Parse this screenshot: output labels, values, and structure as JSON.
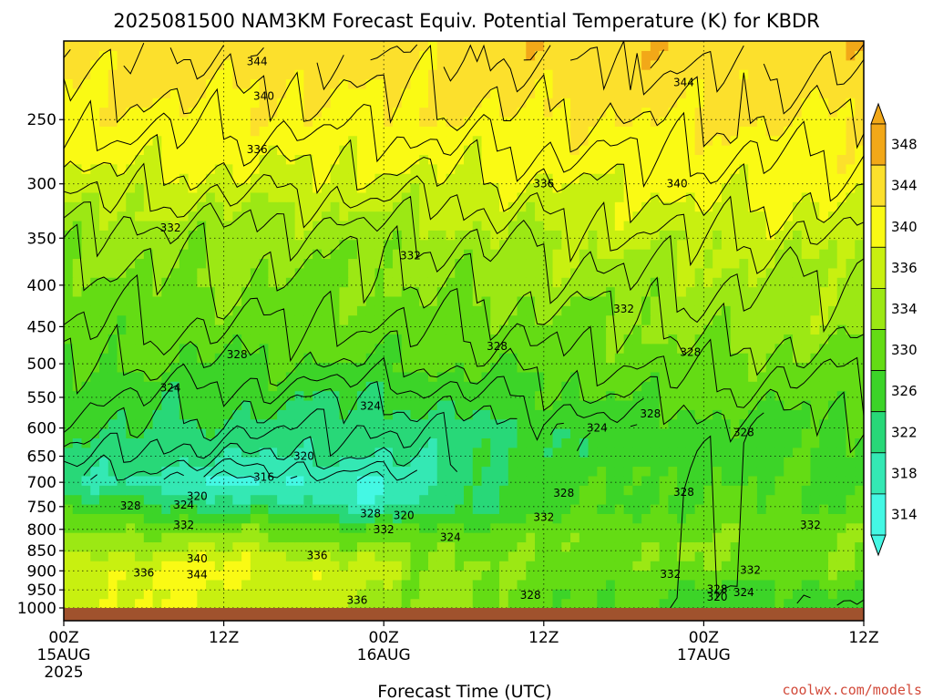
{
  "chart_data": {
    "type": "heatmap",
    "title": "2025081500 NAM3KM Forecast Equiv. Potential Temperature (K) for KBDR",
    "xlabel": "Forecast Time (UTC)",
    "ylabel": "",
    "x_range_hours": [
      0,
      60
    ],
    "y_range_hpa": [
      1000,
      200
    ],
    "y_ticks": [
      250,
      300,
      350,
      400,
      450,
      500,
      550,
      600,
      650,
      700,
      750,
      800,
      850,
      900,
      950,
      1000
    ],
    "x_ticks": [
      {
        "hour": 0,
        "line1": "00Z",
        "line2": "15AUG",
        "line3": "2025"
      },
      {
        "hour": 12,
        "line1": "12Z",
        "line2": "",
        "line3": ""
      },
      {
        "hour": 24,
        "line1": "00Z",
        "line2": "16AUG",
        "line3": ""
      },
      {
        "hour": 36,
        "line1": "12Z",
        "line2": "",
        "line3": ""
      },
      {
        "hour": 48,
        "line1": "00Z",
        "line2": "17AUG",
        "line3": ""
      },
      {
        "hour": 60,
        "line1": "12Z",
        "line2": "",
        "line3": ""
      }
    ],
    "colorbar": {
      "levels": [
        348,
        344,
        340,
        336,
        334,
        330,
        326,
        322,
        318,
        314
      ],
      "colors": [
        "#f2a818",
        "#fce02c",
        "#fafa14",
        "#c8f010",
        "#9ce814",
        "#64dc14",
        "#3cd428",
        "#28d878",
        "#34e8b4",
        "#44f8e4"
      ]
    },
    "profile": {
      "pressure_hpa": [
        1000,
        950,
        900,
        850,
        800,
        750,
        700,
        650,
        600,
        550,
        500,
        450,
        400,
        350,
        300,
        250,
        200
      ],
      "theta_e_k_at_00Z_15AUG": [
        338,
        337,
        337,
        334,
        331,
        327,
        320,
        323,
        325,
        326,
        328,
        330,
        331,
        333,
        337,
        341,
        344
      ],
      "theta_e_k_at_12Z_15AUG": [
        338,
        338,
        340,
        336,
        332,
        323,
        316,
        320,
        323,
        325,
        328,
        330,
        332,
        333,
        337,
        341,
        344
      ],
      "theta_e_k_at_00Z_16AUG": [
        334,
        334,
        335,
        333,
        328,
        318,
        316,
        320,
        322,
        324,
        328,
        330,
        332,
        333,
        337,
        341,
        344
      ],
      "theta_e_k_at_12Z_16AUG": [
        330,
        329,
        331,
        331,
        330,
        327,
        327,
        325,
        324,
        327,
        329,
        331,
        333,
        335,
        338,
        342,
        345
      ],
      "theta_e_k_at_00Z_17AUG": [
        326,
        327,
        331,
        332,
        331,
        328,
        328,
        327,
        327,
        329,
        331,
        333,
        334,
        336,
        339,
        342,
        345
      ],
      "theta_e_k_at_12Z_17AUG": [
        326,
        327,
        331,
        331,
        331,
        329,
        328,
        327,
        327,
        329,
        331,
        333,
        334,
        336,
        339,
        342,
        345
      ]
    },
    "contour_labels": [
      {
        "hour": 14.5,
        "hpa": 212,
        "text": "344"
      },
      {
        "hour": 46.5,
        "hpa": 225,
        "text": "344"
      },
      {
        "hour": 15.0,
        "hpa": 234,
        "text": "340"
      },
      {
        "hour": 46.0,
        "hpa": 300,
        "text": "340"
      },
      {
        "hour": 14.5,
        "hpa": 272,
        "text": "336"
      },
      {
        "hour": 36.0,
        "hpa": 300,
        "text": "336"
      },
      {
        "hour": 8.0,
        "hpa": 340,
        "text": "332"
      },
      {
        "hour": 26.0,
        "hpa": 368,
        "text": "332"
      },
      {
        "hour": 42.0,
        "hpa": 428,
        "text": "332"
      },
      {
        "hour": 13.0,
        "hpa": 487,
        "text": "328"
      },
      {
        "hour": 32.5,
        "hpa": 476,
        "text": "328"
      },
      {
        "hour": 47.0,
        "hpa": 484,
        "text": "328"
      },
      {
        "hour": 44.0,
        "hpa": 576,
        "text": "328"
      },
      {
        "hour": 51.0,
        "hpa": 608,
        "text": "328"
      },
      {
        "hour": 46.5,
        "hpa": 720,
        "text": "328"
      },
      {
        "hour": 37.5,
        "hpa": 722,
        "text": "328"
      },
      {
        "hour": 5.0,
        "hpa": 748,
        "text": "328"
      },
      {
        "hour": 23.0,
        "hpa": 765,
        "text": "328"
      },
      {
        "hour": 8.0,
        "hpa": 535,
        "text": "324"
      },
      {
        "hour": 23.0,
        "hpa": 564,
        "text": "324"
      },
      {
        "hour": 40.0,
        "hpa": 600,
        "text": "324"
      },
      {
        "hour": 9.0,
        "hpa": 746,
        "text": "324"
      },
      {
        "hour": 29.0,
        "hpa": 818,
        "text": "324"
      },
      {
        "hour": 51.0,
        "hpa": 957,
        "text": "324"
      },
      {
        "hour": 18.0,
        "hpa": 650,
        "text": "320"
      },
      {
        "hour": 10.0,
        "hpa": 728,
        "text": "320"
      },
      {
        "hour": 25.5,
        "hpa": 769,
        "text": "320"
      },
      {
        "hour": 49.0,
        "hpa": 970,
        "text": "320"
      },
      {
        "hour": 15.0,
        "hpa": 690,
        "text": "316"
      },
      {
        "hour": 9.0,
        "hpa": 790,
        "text": "332"
      },
      {
        "hour": 24.0,
        "hpa": 800,
        "text": "332"
      },
      {
        "hour": 36.0,
        "hpa": 773,
        "text": "332"
      },
      {
        "hour": 56.0,
        "hpa": 790,
        "text": "332"
      },
      {
        "hour": 45.5,
        "hpa": 909,
        "text": "332"
      },
      {
        "hour": 51.5,
        "hpa": 898,
        "text": "332"
      },
      {
        "hour": 10.0,
        "hpa": 870,
        "text": "340"
      },
      {
        "hour": 10.0,
        "hpa": 910,
        "text": "344"
      },
      {
        "hour": 6.0,
        "hpa": 905,
        "text": "336"
      },
      {
        "hour": 19.0,
        "hpa": 862,
        "text": "336"
      },
      {
        "hour": 22.0,
        "hpa": 978,
        "text": "336"
      },
      {
        "hour": 35.0,
        "hpa": 965,
        "text": "328"
      },
      {
        "hour": 49.0,
        "hpa": 948,
        "text": "328"
      }
    ]
  },
  "credit": "coolwx.com/models"
}
